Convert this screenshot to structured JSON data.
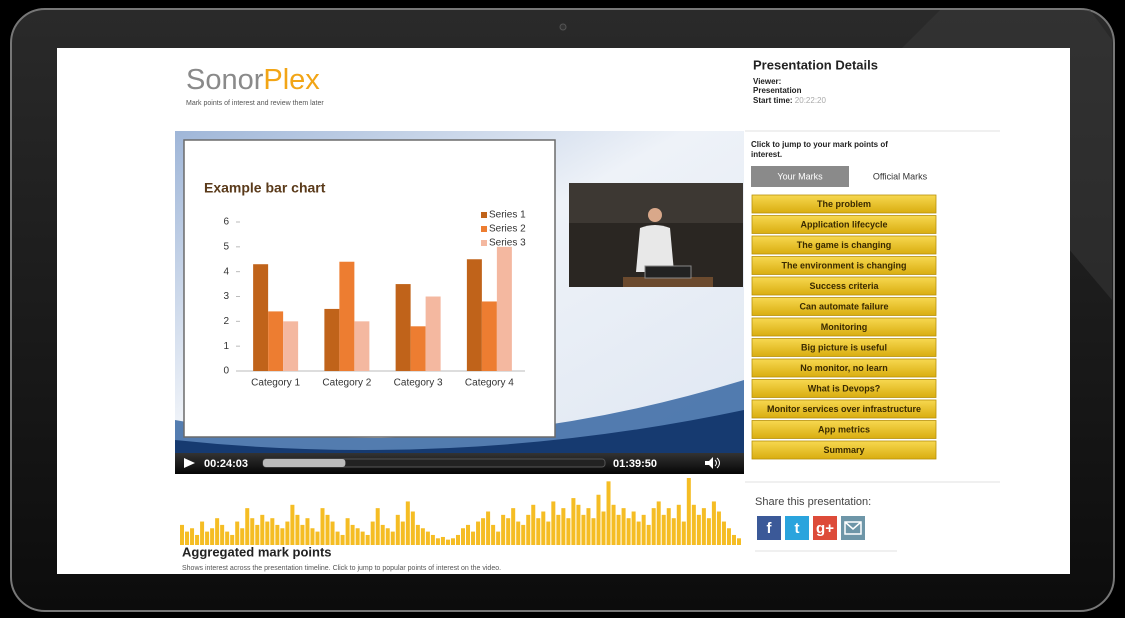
{
  "header": {
    "brand_first": "Sonor",
    "brand_second": "Plex",
    "tagline": "Mark points of interest and review them later"
  },
  "details": {
    "title": "Presentation Details",
    "viewer": "Viewer:",
    "presentation": "Presentation",
    "start_label": "Start time:",
    "start_value": "20:22:20"
  },
  "chart_data": {
    "type": "bar",
    "title": "Example bar chart",
    "categories": [
      "Category 1",
      "Category 2",
      "Category 3",
      "Category 4"
    ],
    "series": [
      {
        "name": "Series 1",
        "color": "#c0631a",
        "values": [
          4.3,
          2.5,
          3.5,
          4.5
        ]
      },
      {
        "name": "Series 2",
        "color": "#ed7d31",
        "values": [
          2.4,
          4.4,
          1.8,
          2.8
        ]
      },
      {
        "name": "Series 3",
        "color": "#f4b8a0",
        "values": [
          2,
          2,
          3,
          5
        ]
      }
    ],
    "ylim": [
      0,
      6
    ],
    "yticks": [
      0,
      1,
      2,
      3,
      4,
      5,
      6
    ],
    "legend": "top-right"
  },
  "video": {
    "current": "00:24:03",
    "duration": "01:39:50"
  },
  "marks": {
    "instruction": "Click to jump to your mark points of interest.",
    "tabs": [
      "Your Marks",
      "Official Marks"
    ],
    "items": [
      "The problem",
      "Application lifecycle",
      "The game is changing",
      "The environment is changing",
      "Success criteria",
      "Can automate failure",
      "Monitoring",
      "Big picture is useful",
      "No monitor, no learn",
      "What is Devops?",
      "Monitor services over infrastructure",
      "App metrics",
      "Summary"
    ]
  },
  "share": {
    "label": "Share this presentation:",
    "icons": [
      "f",
      "t",
      "g+"
    ]
  },
  "aggregated": {
    "title": "Aggregated mark points",
    "description": "Shows interest across the presentation timeline. Click to jump to popular points of interest on the video.",
    "ylim": [
      0,
      100
    ],
    "values": [
      30,
      20,
      25,
      15,
      35,
      20,
      25,
      40,
      30,
      20,
      15,
      35,
      25,
      55,
      40,
      30,
      45,
      35,
      40,
      30,
      25,
      35,
      60,
      45,
      30,
      40,
      25,
      20,
      55,
      45,
      35,
      20,
      15,
      40,
      30,
      25,
      20,
      15,
      35,
      55,
      30,
      25,
      20,
      45,
      35,
      65,
      50,
      30,
      25,
      20,
      15,
      10,
      12,
      8,
      10,
      15,
      25,
      30,
      20,
      35,
      40,
      50,
      30,
      20,
      45,
      40,
      55,
      35,
      30,
      45,
      60,
      40,
      50,
      35,
      65,
      45,
      55,
      40,
      70,
      60,
      45,
      55,
      40,
      75,
      50,
      95,
      60,
      45,
      55,
      40,
      50,
      35,
      45,
      30,
      55,
      65,
      45,
      55,
      40,
      60,
      35,
      100,
      60,
      45,
      55,
      40,
      65,
      50,
      35,
      25,
      15,
      10
    ]
  }
}
